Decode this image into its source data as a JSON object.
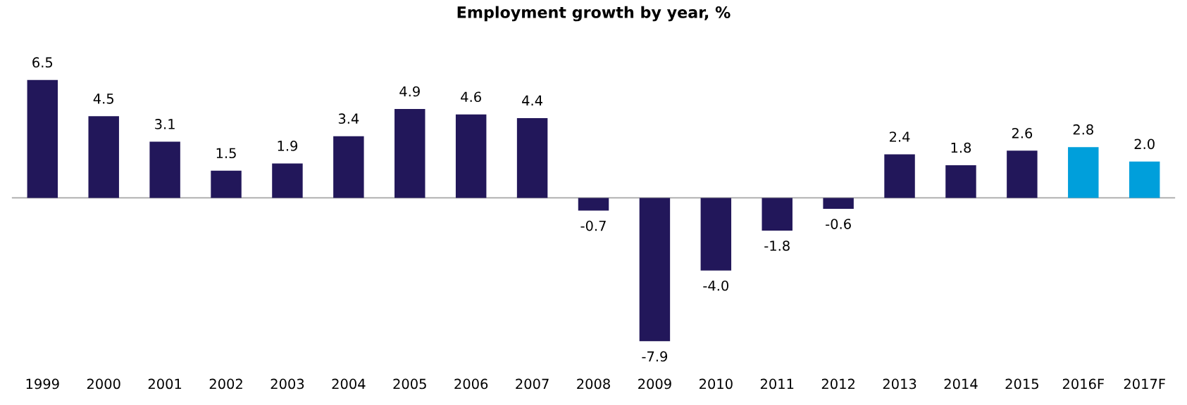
{
  "chart_data": {
    "type": "bar",
    "title": "Employment growth by year, %",
    "categories": [
      "1999",
      "2000",
      "2001",
      "2002",
      "2003",
      "2004",
      "2005",
      "2006",
      "2007",
      "2008",
      "2009",
      "2010",
      "2011",
      "2012",
      "2013",
      "2014",
      "2015",
      "2016F",
      "2017F"
    ],
    "values": [
      6.5,
      4.5,
      3.1,
      1.5,
      1.9,
      3.4,
      4.9,
      4.6,
      4.4,
      -0.7,
      -7.9,
      -4.0,
      -1.8,
      -0.6,
      2.4,
      1.8,
      2.6,
      2.8,
      2.0
    ],
    "colors": [
      "#22175a",
      "#22175a",
      "#22175a",
      "#22175a",
      "#22175a",
      "#22175a",
      "#22175a",
      "#22175a",
      "#22175a",
      "#22175a",
      "#22175a",
      "#22175a",
      "#22175a",
      "#22175a",
      "#22175a",
      "#22175a",
      "#22175a",
      "#009fdb",
      "#009fdb"
    ],
    "value_labels": [
      "6.5",
      "4.5",
      "3.1",
      "1.5",
      "1.9",
      "3.4",
      "4.9",
      "4.6",
      "4.4",
      "-0.7",
      "-7.9",
      "-4.0",
      "-1.8",
      "-0.6",
      "2.4",
      "1.8",
      "2.6",
      "2.8",
      "2.0"
    ],
    "tick_labels": "x",
    "grid": false,
    "legend": false
  }
}
